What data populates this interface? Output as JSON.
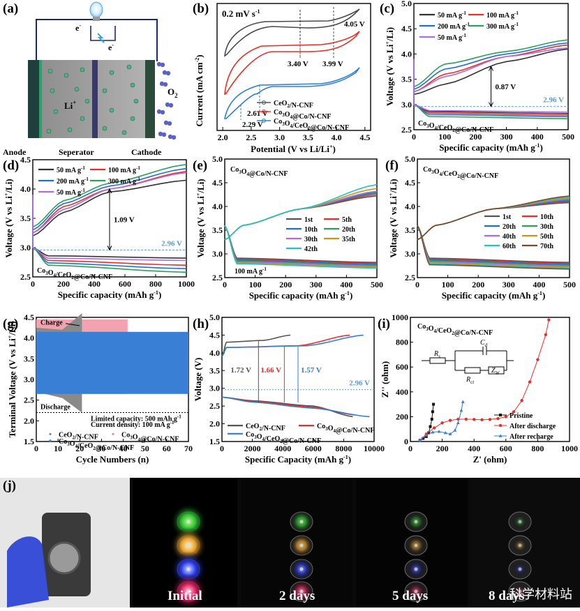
{
  "panels": {
    "a": {
      "label": "(a)",
      "anode": "Anode",
      "separator": "Seperator",
      "cathode": "Cathode",
      "li": "Li",
      "o2": "O",
      "e1": "e",
      "e2": "e"
    },
    "b": {
      "label": "(b)",
      "rate": "0.2 mV s",
      "ylabel": "Current (mA cm",
      "xlabel": "Potential (V vs Li/Li",
      "v405": "4.05 V",
      "v340": "3.40 V",
      "v399": "3.99 V",
      "v261": "2.61 V",
      "v229": "2.29 V",
      "legend": [
        "CeO2/N-CNF",
        "Co3O4@Co/N-CNF",
        "Co3O4/CeO2@Co/N-CNF"
      ]
    },
    "c": {
      "label": "(c)",
      "gap": "0.87 V",
      "ref": "2.96 V",
      "sample": "Co3O4/CeO2@Co/N-CNF"
    },
    "d": {
      "label": "(d)",
      "gap": "1.09 V",
      "ref": "2.96 V",
      "sample": "Co3O4/CeO2@Co/N-CNF"
    },
    "e": {
      "label": "(e)",
      "sample": "Co3O4@Co/N-CNF",
      "current": "100 mA g"
    },
    "f": {
      "label": "(f)",
      "sample": "Co3O4/CeO2@Co/N-CNF"
    },
    "g": {
      "label": "(g)",
      "ylabel": "Terminal Voltage (V vs Li",
      "xlabel": "Cycle Numbers (n)",
      "charge": "Charge",
      "discharge": "Discharge",
      "note1": "Limited capacity: 500 mAh g",
      "note2": "Current density: 100 mA g",
      "legend": [
        "CeO2/N-CNF",
        "Co3O4@Co/N-CNF",
        "Co3O4/CeO2@Co/N-CNF"
      ]
    },
    "h": {
      "label": "(h)",
      "ylabel": "Voltage (V)",
      "xlabel": "Specific Capacity (mAh g",
      "g1": "1.72 V",
      "g2": "1.66 V",
      "g3": "1.57 V",
      "ref": "2.96 V",
      "legend": [
        "CeO2/N-CNF",
        "Co3O4@Co/N-CNF",
        "Co3O4/CeO2@Co/N-CNF"
      ]
    },
    "i": {
      "label": "(i)",
      "sample": "Co3O4/CeO2@Co/N-CNF",
      "ylabel": "Z'' (ohm)",
      "xlabel": "Z' (ohm)",
      "legend": [
        "Pristine",
        "After discharge",
        "After recharge"
      ],
      "rs": "R",
      "rct": "R",
      "cd": "C",
      "zw": "Z"
    },
    "j": {
      "label": "(j)",
      "captions": [
        "Initial",
        "2 days",
        "5 days",
        "8 days"
      ],
      "watermark": "科学材料站"
    }
  },
  "common": {
    "cap_xlabel": "Specific capacity (mAh g",
    "volt_ylabel": "Voltage (V vs Li"
  },
  "chart_data": [
    {
      "panel": "b",
      "type": "line",
      "xlabel": "Potential (V vs Li/Li+)",
      "ylabel": "Current (mA cm-2)",
      "xlim": [
        1.9,
        4.6
      ],
      "xticks": [
        2.0,
        2.5,
        3.0,
        3.5,
        4.0,
        4.5
      ],
      "series": [
        {
          "name": "CeO2/N-CNF",
          "color": "#555555"
        },
        {
          "name": "Co3O4@Co/N-CNF",
          "color": "#e8302a"
        },
        {
          "name": "Co3O4/CeO2@Co/N-CNF",
          "color": "#2f7fd6"
        }
      ],
      "annotations": [
        2.29,
        2.61,
        3.4,
        3.99,
        4.05
      ]
    },
    {
      "panel": "c",
      "type": "line",
      "xlabel": "Specific capacity (mAh g-1)",
      "ylabel": "Voltage (V vs Li+/Li)",
      "xlim": [
        0,
        500
      ],
      "ylim": [
        2.5,
        5.0
      ],
      "xticks": [
        0,
        100,
        200,
        300,
        400,
        500
      ],
      "yticks": [
        2.5,
        3.0,
        3.5,
        4.0,
        4.5,
        5.0
      ],
      "series": [
        {
          "name": "50 mA g-1",
          "color": "#333333",
          "charge": [
            [
              0,
              3.2
            ],
            [
              100,
              3.4
            ],
            [
              300,
              3.85
            ],
            [
              500,
              4.1
            ]
          ],
          "discharge": [
            [
              0,
              3.0
            ],
            [
              50,
              2.86
            ],
            [
              500,
              2.82
            ]
          ]
        },
        {
          "name": "100 mA g-1",
          "color": "#e8302a",
          "charge": [
            [
              0,
              3.25
            ],
            [
              100,
              3.6
            ],
            [
              300,
              3.95
            ],
            [
              500,
              4.18
            ]
          ],
          "discharge": [
            [
              0,
              3.0
            ],
            [
              50,
              2.83
            ],
            [
              500,
              2.79
            ]
          ]
        },
        {
          "name": "200 mA g-1",
          "color": "#1f6fd6",
          "charge": [
            [
              0,
              3.3
            ],
            [
              100,
              3.7
            ],
            [
              300,
              4.0
            ],
            [
              500,
              4.22
            ]
          ],
          "discharge": [
            [
              0,
              3.0
            ],
            [
              50,
              2.8
            ],
            [
              500,
              2.76
            ]
          ]
        },
        {
          "name": "300 mA g-1",
          "color": "#2aa15a",
          "charge": [
            [
              0,
              3.35
            ],
            [
              100,
              3.8
            ],
            [
              300,
              4.05
            ],
            [
              500,
              4.28
            ]
          ],
          "discharge": [
            [
              0,
              3.0
            ],
            [
              50,
              2.76
            ],
            [
              500,
              2.72
            ]
          ]
        },
        {
          "name": "50 mA g-1",
          "color": "#b06be0",
          "charge": [
            [
              0,
              3.25
            ],
            [
              100,
              3.55
            ],
            [
              300,
              3.95
            ],
            [
              500,
              4.12
            ]
          ],
          "discharge": [
            [
              0,
              3.0
            ],
            [
              50,
              2.88
            ],
            [
              500,
              2.85
            ]
          ]
        }
      ]
    },
    {
      "panel": "d",
      "type": "line",
      "xlabel": "Specific capacity (mAh g-1)",
      "ylabel": "Voltage (V vs Li+/Li)",
      "xlim": [
        0,
        1000
      ],
      "ylim": [
        2.5,
        4.5
      ],
      "xticks": [
        0,
        200,
        400,
        600,
        800,
        1000
      ],
      "yticks": [
        2.5,
        3.0,
        3.5,
        4.0,
        4.5
      ],
      "series": [
        {
          "name": "50 mA g-1",
          "color": "#333333",
          "charge": [
            [
              0,
              3.2
            ],
            [
              200,
              3.6
            ],
            [
              500,
              3.95
            ],
            [
              1000,
              4.15
            ]
          ],
          "discharge": [
            [
              0,
              3.0
            ],
            [
              100,
              2.86
            ],
            [
              1000,
              2.82
            ]
          ]
        },
        {
          "name": "100 mA g-1",
          "color": "#e8302a",
          "charge": [
            [
              0,
              3.25
            ],
            [
              200,
              3.7
            ],
            [
              500,
              4.0
            ],
            [
              1000,
              4.3
            ]
          ],
          "discharge": [
            [
              0,
              3.0
            ],
            [
              100,
              2.78
            ],
            [
              1000,
              2.7
            ]
          ]
        },
        {
          "name": "200 mA g-1",
          "color": "#1f6fd6",
          "charge": [
            [
              0,
              3.3
            ],
            [
              200,
              3.75
            ],
            [
              500,
              4.05
            ],
            [
              1000,
              4.35
            ]
          ],
          "discharge": [
            [
              0,
              3.0
            ],
            [
              100,
              2.74
            ],
            [
              1000,
              2.64
            ]
          ]
        },
        {
          "name": "300 mA g-1",
          "color": "#2aa15a",
          "charge": [
            [
              0,
              3.35
            ],
            [
              200,
              3.8
            ],
            [
              500,
              4.1
            ],
            [
              1000,
              4.42
            ]
          ],
          "discharge": [
            [
              0,
              3.0
            ],
            [
              100,
              2.7
            ],
            [
              1000,
              2.58
            ]
          ]
        },
        {
          "name": "50 mA g-1",
          "color": "#b06be0",
          "charge": [
            [
              0,
              3.25
            ],
            [
              200,
              3.65
            ],
            [
              500,
              4.0
            ],
            [
              1000,
              4.28
            ]
          ],
          "discharge": [
            [
              0,
              3.0
            ],
            [
              100,
              2.82
            ],
            [
              1000,
              2.78
            ]
          ]
        }
      ]
    },
    {
      "panel": "e",
      "type": "line",
      "xlabel": "Specific capacity (mAh g-1)",
      "ylabel": "Voltage (V vs Li+/Li)",
      "xlim": [
        0,
        500
      ],
      "ylim": [
        2.5,
        5.0
      ],
      "xticks": [
        0,
        100,
        200,
        300,
        400,
        500
      ],
      "yticks": [
        2.5,
        3.0,
        3.5,
        4.0,
        4.5,
        5.0
      ],
      "series": [
        {
          "name": "1st",
          "color": "#555555",
          "end": 4.22
        },
        {
          "name": "5th",
          "color": "#e8302a",
          "end": 4.25
        },
        {
          "name": "10th",
          "color": "#1f6fd6",
          "end": 4.28
        },
        {
          "name": "20th",
          "color": "#2aa15a",
          "end": 4.3
        },
        {
          "name": "30th",
          "color": "#b06be0",
          "end": 4.32
        },
        {
          "name": "35th",
          "color": "#c8941a",
          "end": 4.38
        },
        {
          "name": "42th",
          "color": "#22c4c0",
          "end": 4.46
        }
      ]
    },
    {
      "panel": "f",
      "type": "line",
      "xlabel": "Specific capacity (mAh g-1)",
      "ylabel": "Voltage (V vs Li+/Li)",
      "xlim": [
        0,
        500
      ],
      "ylim": [
        2.5,
        5.0
      ],
      "xticks": [
        0,
        100,
        200,
        300,
        400,
        500
      ],
      "yticks": [
        2.5,
        3.0,
        3.5,
        4.0,
        4.5,
        5.0
      ],
      "series": [
        {
          "name": "1st",
          "color": "#555555"
        },
        {
          "name": "10th",
          "color": "#e8302a"
        },
        {
          "name": "20th",
          "color": "#1f6fd6"
        },
        {
          "name": "30th",
          "color": "#2aa15a"
        },
        {
          "name": "40th",
          "color": "#b06be0"
        },
        {
          "name": "50th",
          "color": "#c8941a"
        },
        {
          "name": "60th",
          "color": "#22c4c0"
        },
        {
          "name": "70th",
          "color": "#7a4a2a"
        }
      ]
    },
    {
      "panel": "g",
      "type": "line",
      "xlabel": "Cycle Numbers (n)",
      "ylabel": "Terminal Voltage (V vs Li+/Li)",
      "xlim": [
        0,
        70
      ],
      "ylim": [
        1.5,
        4.5
      ],
      "xticks": [
        0,
        10,
        20,
        30,
        40,
        50,
        60,
        70
      ],
      "yticks": [
        1.5,
        2.0,
        2.5,
        3.0,
        3.5,
        4.0,
        4.5
      ],
      "series": [
        {
          "name": "CeO2/N-CNF",
          "color": "#888888",
          "cycles": 21
        },
        {
          "name": "Co3O4@Co/N-CNF",
          "color": "#f08a9a",
          "cycles": 42
        },
        {
          "name": "Co3O4/CeO2@Co/N-CNF",
          "color": "#3a7fd6",
          "cycles": 70
        }
      ]
    },
    {
      "panel": "h",
      "type": "line",
      "xlabel": "Specific Capacity (mAh g-1)",
      "ylabel": "Voltage (V)",
      "xlim": [
        0,
        10000
      ],
      "ylim": [
        1.5,
        5.0
      ],
      "xticks": [
        0,
        2000,
        4000,
        6000,
        8000,
        10000
      ],
      "yticks": [
        1.5,
        2.0,
        2.5,
        3.0,
        3.5,
        4.0,
        4.5,
        5.0
      ],
      "series": [
        {
          "name": "CeO2/N-CNF",
          "color": "#555555",
          "charge_end": 4500,
          "discharge_end": 8600
        },
        {
          "name": "Co3O4@Co/N-CNF",
          "color": "#e8302a",
          "charge_end": 8400,
          "discharge_end": 8700
        },
        {
          "name": "Co3O4/CeO2@Co/N-CNF",
          "color": "#2f7fd6",
          "charge_end": 9300,
          "discharge_end": 9700
        }
      ]
    },
    {
      "panel": "i",
      "type": "scatter",
      "xlabel": "Z' (ohm)",
      "ylabel": "Z'' (ohm)",
      "xlim": [
        0,
        1000
      ],
      "ylim": [
        0,
        1000
      ],
      "xticks": [
        0,
        200,
        400,
        600,
        800,
        1000
      ],
      "yticks": [
        0,
        200,
        400,
        600,
        800,
        1000
      ],
      "series": [
        {
          "name": "Pristine",
          "color": "#111111",
          "points": [
            [
              60,
              10
            ],
            [
              80,
              25
            ],
            [
              100,
              40
            ],
            [
              115,
              70
            ],
            [
              125,
              120
            ],
            [
              135,
              180
            ],
            [
              140,
              240
            ],
            [
              145,
              300
            ]
          ]
        },
        {
          "name": "After discharge",
          "color": "#e8302a",
          "points": [
            [
              60,
              10
            ],
            [
              100,
              60
            ],
            [
              150,
              110
            ],
            [
              200,
              150
            ],
            [
              250,
              170
            ],
            [
              300,
              180
            ],
            [
              350,
              180
            ],
            [
              400,
              178
            ],
            [
              450,
              175
            ],
            [
              500,
              178
            ],
            [
              550,
              185
            ],
            [
              600,
              200
            ],
            [
              650,
              240
            ],
            [
              700,
              330
            ],
            [
              750,
              480
            ],
            [
              800,
              660
            ],
            [
              850,
              860
            ],
            [
              870,
              980
            ]
          ]
        },
        {
          "name": "After recharge",
          "color": "#2f7fd6",
          "points": [
            [
              60,
              10
            ],
            [
              100,
              50
            ],
            [
              140,
              75
            ],
            [
              180,
              80
            ],
            [
              220,
              70
            ],
            [
              250,
              60
            ],
            [
              280,
              90
            ],
            [
              300,
              150
            ],
            [
              320,
              250
            ],
            [
              330,
              320
            ]
          ]
        }
      ]
    }
  ]
}
